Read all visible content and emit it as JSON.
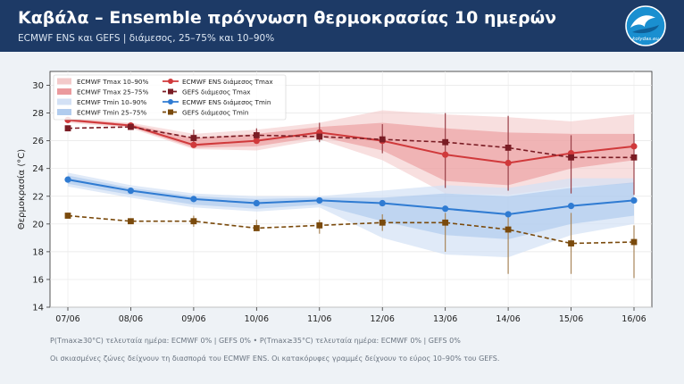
{
  "header": {
    "title": "Καβάλα – Ensemble πρόγνωση θερμοκρασίας 10 ημερών",
    "subtitle": "ECMWF ENS και GEFS | διάμεσος, 25–75% και 10–90%",
    "logo_text": "kolydas.eu"
  },
  "footer": {
    "prob_line": "P(Tmax≥30°C) τελευταία ημέρα: ECMWF 0% | GEFS 0%   •   P(Tmax≥35°C) τελευταία ημέρα: ECMWF 0% | GEFS 0%",
    "note": "Οι σκιασμένες ζώνες δείχνουν τη διασπορά του ECMWF ENS. Οι κατακόρυφες γραμμές δείχνουν το εύρος 10–90% του GEFS."
  },
  "colors": {
    "header_bg": "#1d3a66",
    "ecmwf_tmax": "#d0393b",
    "gefs_tmax": "#7a1c24",
    "ecmwf_tmin": "#2f7bd2",
    "gefs_tmin": "#7a4a0c",
    "gefs_tmax_whisker": "#9a4048",
    "gefs_tmin_whisker": "#a8865a"
  },
  "chart_data": {
    "type": "line",
    "x": [
      "07/06",
      "08/06",
      "09/06",
      "10/06",
      "11/06",
      "12/06",
      "13/06",
      "14/06",
      "15/06",
      "16/06"
    ],
    "ylabel": "Θερμοκρασία (°C)",
    "ylim": [
      14,
      31
    ],
    "yticks": [
      14,
      16,
      18,
      20,
      22,
      24,
      26,
      28,
      30
    ],
    "grid": true,
    "legend_position": "top-left",
    "bands": [
      {
        "name": "ECMWF Tmax 10–90%",
        "low": [
          27.3,
          26.9,
          25.4,
          25.3,
          26.1,
          24.6,
          22.2,
          22.1,
          22.7,
          22.9
        ],
        "high": [
          27.7,
          27.3,
          26.5,
          26.8,
          27.3,
          28.2,
          27.9,
          27.7,
          27.4,
          27.9
        ],
        "color": "#f2c4c4"
      },
      {
        "name": "ECMWF Tmax 25–75%",
        "low": [
          27.4,
          27.0,
          25.5,
          25.6,
          26.3,
          25.3,
          23.1,
          22.8,
          24.0,
          24.6
        ],
        "high": [
          27.6,
          27.2,
          26.2,
          26.5,
          27.0,
          27.3,
          26.9,
          26.6,
          26.5,
          26.5
        ],
        "color": "#e98f92"
      },
      {
        "name": "ECMWF Tmin 10–90%",
        "low": [
          22.7,
          21.9,
          21.2,
          20.9,
          21.2,
          19.0,
          17.8,
          17.6,
          19.2,
          20.0
        ],
        "high": [
          23.7,
          22.8,
          22.2,
          22.0,
          22.0,
          22.4,
          22.8,
          22.6,
          23.3,
          23.3
        ],
        "color": "#d3e1f5"
      },
      {
        "name": "ECMWF Tmin 25–75%",
        "low": [
          22.9,
          22.1,
          21.4,
          21.1,
          21.4,
          20.2,
          19.2,
          18.9,
          20.0,
          20.6
        ],
        "high": [
          23.5,
          22.6,
          22.0,
          21.8,
          21.9,
          21.9,
          22.2,
          22.0,
          22.6,
          23.0
        ],
        "color": "#a8c6ec"
      }
    ],
    "series": [
      {
        "name": "ECMWF ENS διάμεσος Tmax",
        "values": [
          27.5,
          27.1,
          25.7,
          26.0,
          26.6,
          26.0,
          25.0,
          24.4,
          25.1,
          25.6
        ],
        "style": "solid",
        "marker": "circle"
      },
      {
        "name": "GEFS διάμεσος Tmax",
        "values": [
          26.9,
          27.0,
          26.2,
          26.4,
          26.3,
          26.1,
          25.9,
          25.5,
          24.8,
          24.8
        ],
        "style": "dashed",
        "marker": "square"
      },
      {
        "name": "ECMWF ENS διάμεσος Tmin",
        "values": [
          23.2,
          22.4,
          21.8,
          21.5,
          21.7,
          21.5,
          21.1,
          20.7,
          21.3,
          21.7
        ],
        "style": "solid",
        "marker": "circle"
      },
      {
        "name": "GEFS διάμεσος Tmin",
        "values": [
          20.6,
          20.2,
          20.2,
          19.7,
          19.9,
          20.1,
          20.1,
          19.6,
          18.6,
          18.7
        ],
        "style": "dashed",
        "marker": "square"
      }
    ],
    "gefs_whiskers": {
      "tmax": {
        "low": [
          26.7,
          26.8,
          25.8,
          26.1,
          25.9,
          25.1,
          22.6,
          22.4,
          22.2,
          22.1
        ],
        "high": [
          27.1,
          27.2,
          26.8,
          26.9,
          27.3,
          27.2,
          28.0,
          27.8,
          26.4,
          26.5
        ]
      },
      "tmin": {
        "low": [
          20.4,
          20.0,
          19.8,
          19.5,
          19.3,
          19.5,
          18.0,
          16.4,
          16.4,
          16.1
        ],
        "high": [
          20.8,
          20.4,
          20.6,
          20.3,
          20.3,
          20.7,
          20.8,
          20.6,
          20.8,
          19.9
        ]
      }
    }
  }
}
